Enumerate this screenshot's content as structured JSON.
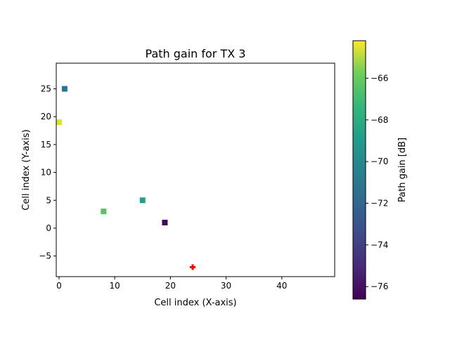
{
  "chart_data": {
    "type": "scatter",
    "title": "Path gain for TX 3",
    "xlabel": "Cell index (X-axis)",
    "ylabel": "Cell index (Y-axis)",
    "xlim": [
      -0.5,
      49.5
    ],
    "ylim": [
      -8.7,
      29.6
    ],
    "xticks": [
      0,
      10,
      20,
      30,
      40
    ],
    "yticks": [
      -5,
      0,
      5,
      10,
      15,
      20,
      25
    ],
    "grid": false,
    "legend": "none",
    "points": [
      {
        "x": 1,
        "y": 25,
        "value": -71.2
      },
      {
        "x": 0,
        "y": 19,
        "value": -64.5
      },
      {
        "x": 8,
        "y": 3,
        "value": -66.4
      },
      {
        "x": 15,
        "y": 5,
        "value": -68.7
      },
      {
        "x": 19,
        "y": 1,
        "value": -76.4
      }
    ],
    "transmitter": {
      "x": 24,
      "y": -7,
      "marker": "plus",
      "color": "#ff0000"
    },
    "colorbar": {
      "label": "Path gain [dB]",
      "colormap": "viridis",
      "range": [
        -76.6,
        -64.2
      ],
      "ticks": [
        -76,
        -74,
        -72,
        -70,
        -68,
        -66
      ]
    }
  }
}
